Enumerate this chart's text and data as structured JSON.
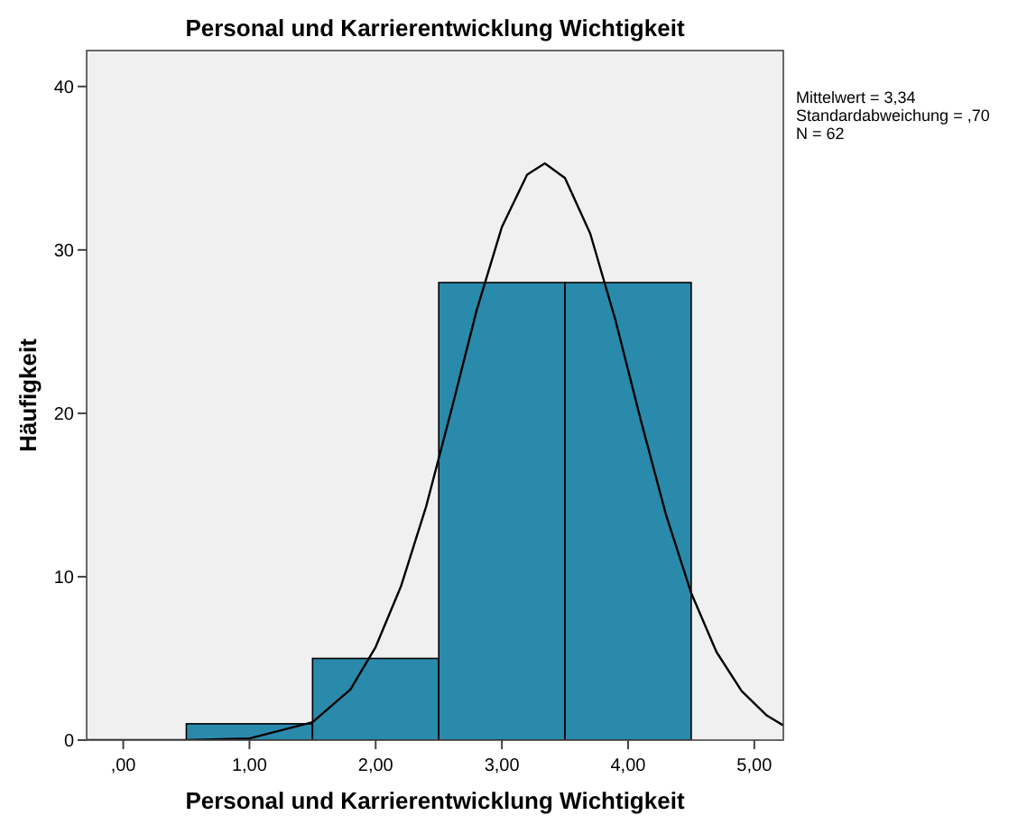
{
  "chart_data": {
    "type": "histogram",
    "title": "Personal und Karrierentwicklung Wichtigkeit",
    "xlabel": "Personal und Karrierentwicklung Wichtigkeit",
    "ylabel": "Häufigkeit",
    "bins": [
      0.5,
      1.5,
      2.5,
      3.5,
      4.5
    ],
    "values": [
      1,
      5,
      28,
      28
    ],
    "color": "#2a8aab",
    "xlim": [
      -0.29,
      5.23
    ],
    "xticks": [
      {
        "value": 0,
        "label": ",00"
      },
      {
        "value": 1,
        "label": "1,00"
      },
      {
        "value": 2,
        "label": "2,00"
      },
      {
        "value": 3,
        "label": "3,00"
      },
      {
        "value": 4,
        "label": "4,00"
      },
      {
        "value": 5,
        "label": "5,00"
      }
    ],
    "ylim": [
      0,
      42.2
    ],
    "yticks": [
      0,
      10,
      20,
      30,
      40
    ],
    "grid": false,
    "series": [
      {
        "type": "line",
        "color": "#000000",
        "x": [
          -0.29,
          0.5,
          1.0,
          1.5,
          1.8,
          2.0,
          2.2,
          2.4,
          2.6,
          2.8,
          3.0,
          3.2,
          3.34,
          3.5,
          3.7,
          3.9,
          4.1,
          4.3,
          4.5,
          4.7,
          4.9,
          5.1,
          5.23
        ],
        "values": [
          0,
          0,
          0.1,
          1.1,
          3.1,
          5.7,
          9.4,
          14.3,
          20.2,
          26.3,
          31.4,
          34.6,
          35.3,
          34.4,
          31,
          25.7,
          19.6,
          13.8,
          9,
          5.4,
          3,
          1.5,
          0.9
        ]
      }
    ],
    "annotations": [
      "Mittelwert = 3,34",
      "Standardabweichung = ,70",
      "N = 62"
    ]
  }
}
